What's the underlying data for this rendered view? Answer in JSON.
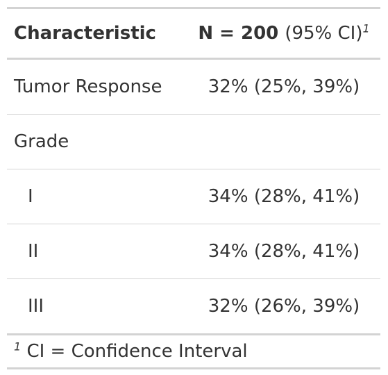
{
  "table": {
    "header": {
      "characteristic": "Characteristic",
      "stat_main": "N = 200",
      "stat_paren": "(95% CI)",
      "stat_footnote_mark": "1"
    },
    "rows": [
      {
        "label": "Tumor Response",
        "value": "32% (25%, 39%)"
      },
      {
        "label": "Grade",
        "value": ""
      },
      {
        "label": "I",
        "value": "34% (28%, 41%)"
      },
      {
        "label": "II",
        "value": "34% (28%, 41%)"
      },
      {
        "label": "III",
        "value": "32% (26%, 39%)"
      }
    ],
    "footnote": {
      "mark": "1",
      "text": "CI = Confidence Interval"
    }
  }
}
